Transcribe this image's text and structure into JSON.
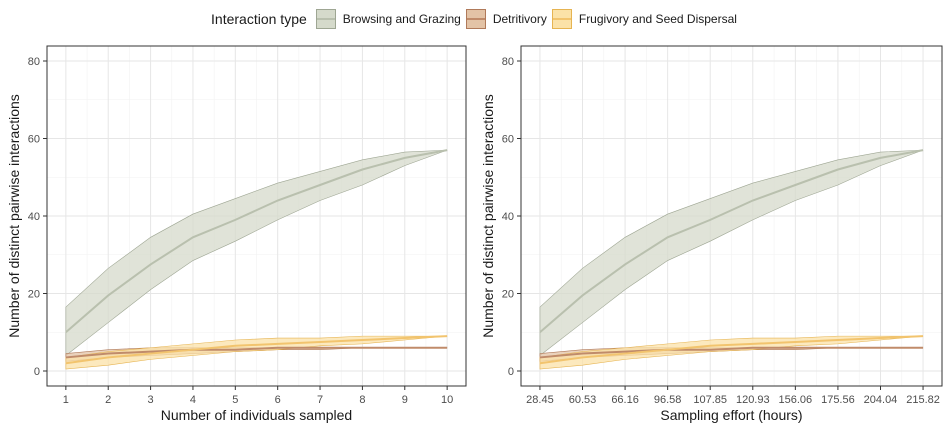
{
  "legend": {
    "title": "Interaction type",
    "items": [
      {
        "label": "Browsing and Grazing",
        "fill": "#d5dacb",
        "line": "#b9c0ae",
        "border": "#9ea693"
      },
      {
        "label": "Detritivory",
        "fill": "#e3c3a6",
        "line": "#c08b6a",
        "border": "#b07a5a"
      },
      {
        "label": "Frugivory and Seed Dispersal",
        "fill": "#fbe2a8",
        "line": "#f2c46e",
        "border": "#e6b452"
      }
    ]
  },
  "chart_data": [
    {
      "type": "area",
      "xlabel": "Number of individuals sampled",
      "ylabel": "Number of distinct pairwise interactions",
      "x_ticks": [
        "1",
        "2",
        "3",
        "4",
        "5",
        "6",
        "7",
        "8",
        "9",
        "10"
      ],
      "ylim": [
        0,
        80
      ],
      "y_ticks": [
        0,
        20,
        40,
        60,
        80
      ],
      "grid": true,
      "series": [
        {
          "name": "Browsing and Grazing",
          "mean": [
            10,
            19.5,
            27.5,
            34.5,
            39,
            44,
            48,
            52,
            55,
            57
          ],
          "lower": [
            4,
            12.5,
            21,
            28.5,
            33.5,
            39,
            44,
            48,
            53,
            57
          ],
          "upper": [
            16.5,
            26.5,
            34.5,
            40.5,
            44.5,
            48.5,
            51.5,
            54.5,
            56.5,
            57
          ]
        },
        {
          "name": "Detritivory",
          "mean": [
            3.5,
            4.5,
            5,
            5.5,
            5.5,
            6,
            6,
            6,
            6,
            6
          ],
          "lower": [
            2.5,
            3.5,
            4,
            4.5,
            5,
            5.5,
            5.5,
            6,
            6,
            6
          ],
          "upper": [
            4.5,
            5.5,
            6,
            6,
            6,
            6,
            6,
            6,
            6,
            6
          ]
        },
        {
          "name": "Frugivory and Seed Dispersal",
          "mean": [
            2,
            3.5,
            4.5,
            5.5,
            6.5,
            7,
            7.5,
            8,
            8.5,
            9
          ],
          "lower": [
            0.5,
            1.5,
            3,
            4,
            5,
            5.5,
            6.5,
            7,
            8,
            9
          ],
          "upper": [
            3.5,
            5,
            6,
            7,
            8,
            8.5,
            8.5,
            9,
            9,
            9
          ]
        }
      ]
    },
    {
      "type": "area",
      "xlabel": "Sampling effort (hours)",
      "ylabel": "Number of distinct pairwise interactions",
      "x_ticks": [
        "28.45",
        "60.53",
        "66.16",
        "96.58",
        "107.85",
        "120.93",
        "156.06",
        "175.56",
        "204.04",
        "215.82"
      ],
      "ylim": [
        0,
        80
      ],
      "y_ticks": [
        0,
        20,
        40,
        60,
        80
      ],
      "grid": true,
      "series": [
        {
          "name": "Browsing and Grazing",
          "mean": [
            10,
            19.5,
            27.5,
            34.5,
            39,
            44,
            48,
            52,
            55,
            57
          ],
          "lower": [
            4,
            12.5,
            21,
            28.5,
            33.5,
            39,
            44,
            48,
            53,
            57
          ],
          "upper": [
            16.5,
            26.5,
            34.5,
            40.5,
            44.5,
            48.5,
            51.5,
            54.5,
            56.5,
            57
          ]
        },
        {
          "name": "Detritivory",
          "mean": [
            3.5,
            4.5,
            5,
            5.5,
            5.5,
            6,
            6,
            6,
            6,
            6
          ],
          "lower": [
            2.5,
            3.5,
            4,
            4.5,
            5,
            5.5,
            5.5,
            6,
            6,
            6
          ],
          "upper": [
            4.5,
            5.5,
            6,
            6,
            6,
            6,
            6,
            6,
            6,
            6
          ]
        },
        {
          "name": "Frugivory and Seed Dispersal",
          "mean": [
            2,
            3.5,
            4.5,
            5.5,
            6.5,
            7,
            7.5,
            8,
            8.5,
            9
          ],
          "lower": [
            0.5,
            1.5,
            3,
            4,
            5,
            5.5,
            6.5,
            7,
            8,
            9
          ],
          "upper": [
            3.5,
            5,
            6,
            7,
            8,
            8.5,
            8.5,
            9,
            9,
            9
          ]
        }
      ]
    }
  ]
}
